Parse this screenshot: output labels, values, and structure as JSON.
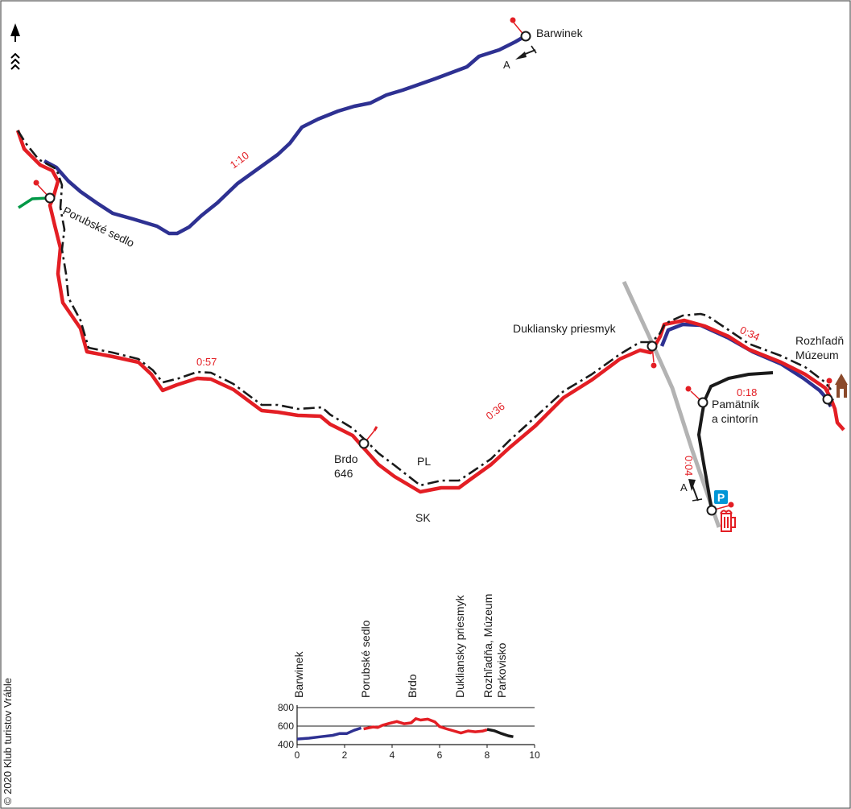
{
  "map": {
    "places": {
      "barwinek": "Barwinek",
      "porubske_sedlo": "Porubské sedlo",
      "dukliansky_priesmyk": "Dukliansky priesmyk",
      "rozhladna_line1": "Rozhľadň",
      "rozhladna_line2": "Múzeum",
      "pamatnik_line1": "Pamätník",
      "pamatnik_line2": "a cintorín",
      "brdo_line1": "Brdo",
      "brdo_line2": "646"
    },
    "country_codes": {
      "pl": "PL",
      "sk": "SK"
    },
    "border_crossing_labels": {
      "top": "A",
      "bottom": "A"
    },
    "times": {
      "blue": "1:10",
      "red_west": "0:57",
      "red_mid": "0:36",
      "red_east": "0:34",
      "black_north": "0:18",
      "black_south": "0:04"
    },
    "parking_symbol": "P",
    "copyright": "© 2020 Klub turistov Vráble",
    "colors": {
      "red_trail": "#e31e24",
      "blue_trail": "#2e3192",
      "green_trail": "#009846",
      "black_trail": "#1a1a1a",
      "road": "#b3b3b3",
      "parking": "#0096d6",
      "museum": "#8b4a2b"
    }
  },
  "profile": {
    "labels": {
      "barwinek": "Barwinek",
      "porubske_sedlo": "Porubské sedlo",
      "brdo": "Brdo",
      "dukliansky": "Dukliansky priesmyk",
      "rozhladna": "Rozhľadňa, Múzeum",
      "parkovisko": "Parkovisko"
    },
    "y_ticks": [
      "800",
      "600",
      "400"
    ],
    "x_ticks": [
      "0",
      "2",
      "4",
      "6",
      "8",
      "10"
    ],
    "chart_data": {
      "type": "line",
      "xlim": [
        0,
        10
      ],
      "ylim": [
        400,
        800
      ],
      "series": [
        {
          "color": "#2e3192",
          "x": [
            0,
            0.5,
            1,
            1.5,
            1.8,
            2.1,
            2.4,
            2.7
          ],
          "y": [
            460,
            470,
            485,
            500,
            520,
            520,
            555,
            580
          ]
        },
        {
          "color": "#e31e24",
          "x": [
            2.8,
            3.0,
            3.2,
            3.4,
            3.6,
            3.9,
            4.2,
            4.5,
            4.8,
            5.0,
            5.2,
            5.5,
            5.8,
            6.0,
            6.3,
            6.6,
            6.9,
            7.2,
            7.5,
            7.8,
            8.0
          ],
          "y": [
            570,
            580,
            590,
            585,
            610,
            630,
            650,
            625,
            635,
            680,
            665,
            675,
            645,
            595,
            570,
            548,
            525,
            548,
            538,
            545,
            560
          ]
        },
        {
          "color": "#1a1a1a",
          "x": [
            8.0,
            8.3,
            8.6,
            8.9,
            9.1
          ],
          "y": [
            565,
            550,
            520,
            495,
            485
          ]
        }
      ]
    }
  }
}
